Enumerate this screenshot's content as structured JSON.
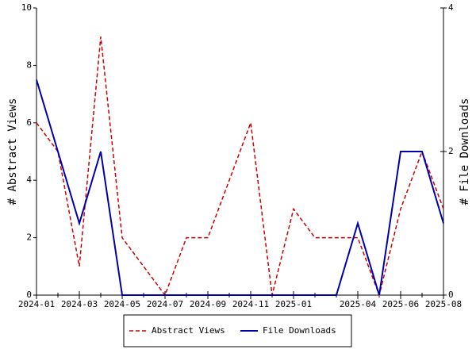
{
  "chart_data": {
    "type": "line",
    "x": [
      "2024-01",
      "2024-02",
      "2024-03",
      "2024-04",
      "2024-05",
      "2024-06",
      "2024-07",
      "2024-08",
      "2024-09",
      "2024-10",
      "2024-11",
      "2024-12",
      "2025-01",
      "2025-02",
      "2025-03",
      "2025-04",
      "2025-05",
      "2025-06",
      "2025-07",
      "2025-08"
    ],
    "xticks": [
      "2024-01",
      "2024-03",
      "2024-05",
      "2024-07",
      "2024-09",
      "2024-11",
      "2025-01",
      "2025-04",
      "2025-06",
      "2025-08"
    ],
    "ylabel": "# Abstract Views",
    "y2label": "# File Downloads",
    "ylim": [
      0,
      10
    ],
    "yticks": [
      0,
      2,
      4,
      6,
      8,
      10
    ],
    "y2lim": [
      0,
      4
    ],
    "y2ticks": [
      0,
      2,
      4
    ],
    "series": [
      {
        "name": "Abstract Views",
        "color": "#cc0000",
        "dashed": true,
        "values": [
          6,
          5,
          1,
          9,
          2,
          1,
          0,
          2,
          2,
          4,
          6,
          0,
          3,
          2,
          2,
          2,
          0,
          3,
          5,
          3
        ]
      },
      {
        "name": "File Downloads",
        "color": "#0000aa",
        "axis": "y2",
        "values": [
          3,
          2,
          1,
          2,
          0,
          0,
          0,
          0,
          0,
          0,
          0,
          0,
          0,
          0,
          0,
          1,
          0,
          2,
          2,
          1
        ]
      }
    ],
    "legend": "bottom"
  }
}
